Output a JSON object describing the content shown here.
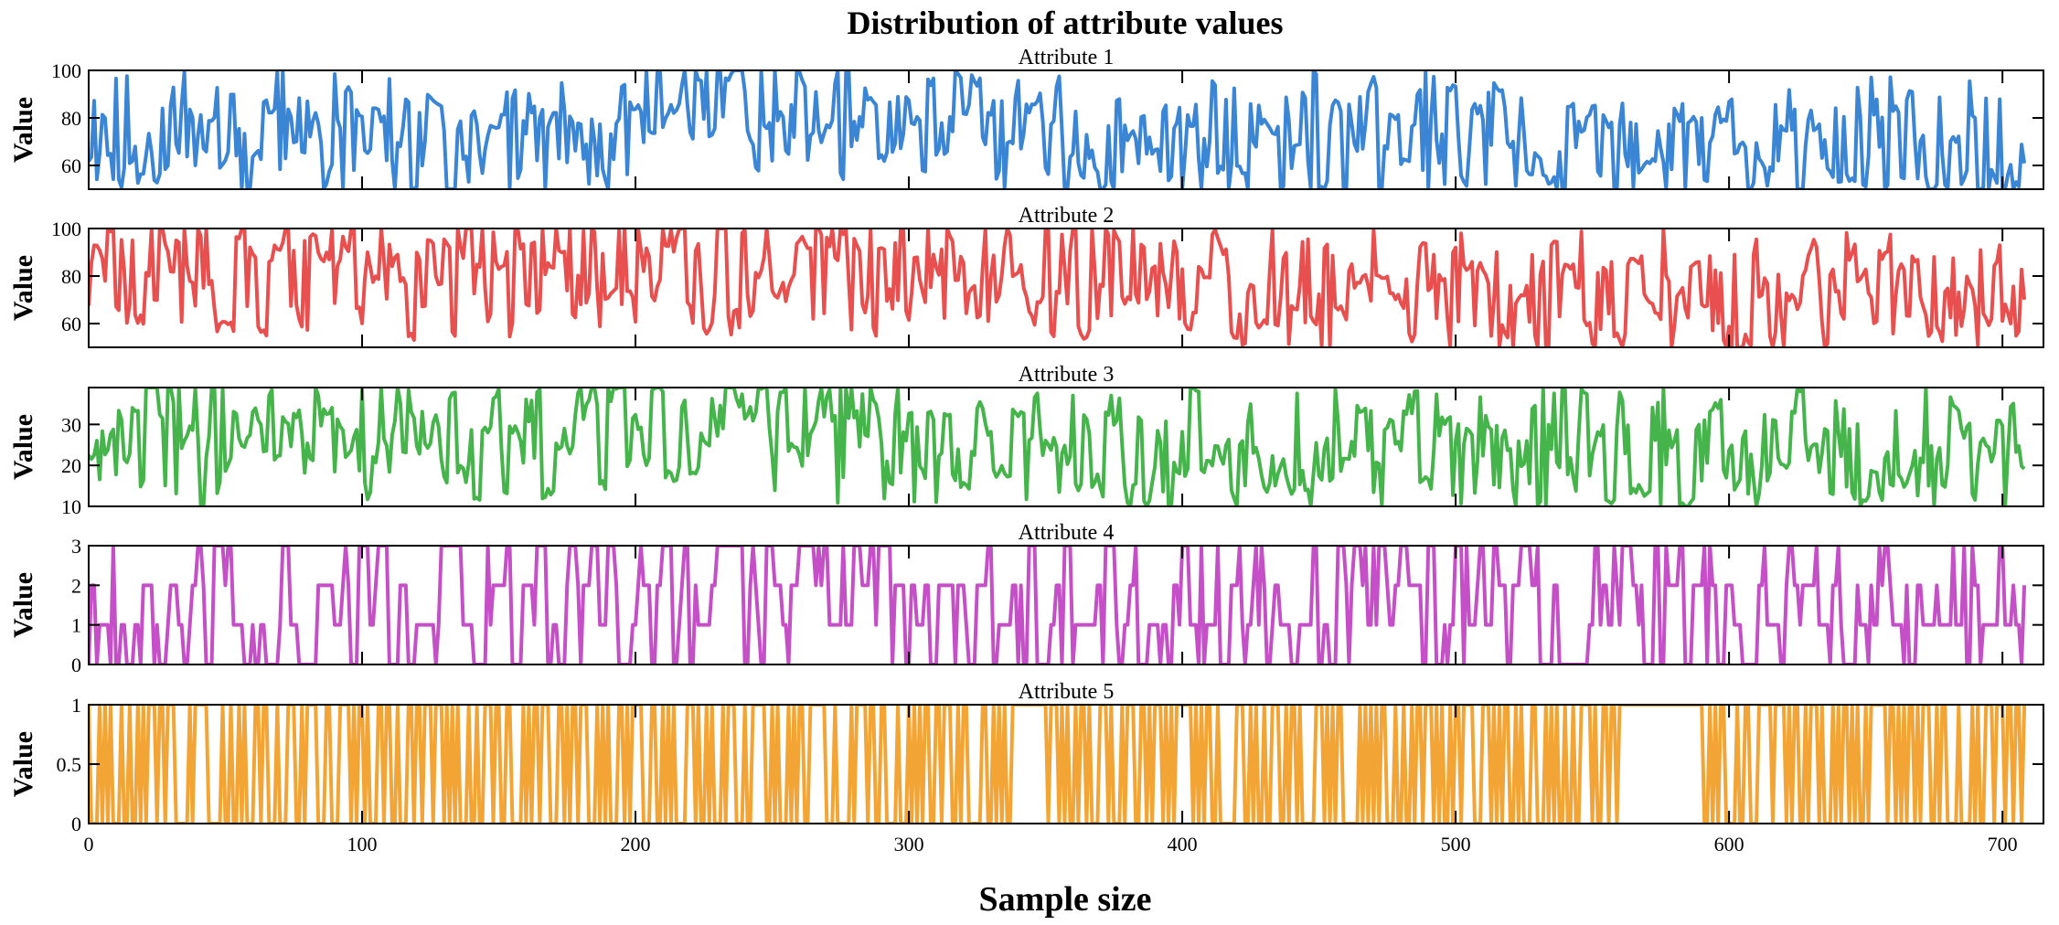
{
  "chart_data": {
    "type": "line",
    "title": "Distribution of attribute values",
    "xlabel": "Sample size",
    "ylabel": "Value",
    "xlim": [
      0,
      715
    ],
    "xticks": [
      0,
      100,
      200,
      300,
      400,
      500,
      600,
      700
    ],
    "n_samples": 709,
    "series": [
      {
        "name": "Attribute 1",
        "color": "#3a86d4",
        "ylim": [
          50,
          100
        ],
        "yticks": [
          60,
          80,
          100
        ],
        "min": 50,
        "max": 100,
        "kind": "continuous",
        "seed": 11,
        "segments": [
          [
            0,
            80,
            78
          ],
          [
            200,
            240,
            92
          ],
          [
            240,
            350,
            80
          ],
          [
            350,
            500,
            72
          ],
          [
            500,
            709,
            68
          ]
        ]
      },
      {
        "name": "Attribute 2",
        "color": "#e8504f",
        "ylim": [
          50,
          100
        ],
        "yticks": [
          60,
          80,
          100
        ],
        "min": 50,
        "max": 100,
        "kind": "continuous",
        "seed": 23,
        "segments": [
          [
            0,
            400,
            82
          ],
          [
            400,
            709,
            72
          ]
        ]
      },
      {
        "name": "Attribute 3",
        "color": "#45b54b",
        "ylim": [
          10,
          39
        ],
        "yticks": [
          10,
          20,
          30
        ],
        "min": 10,
        "max": 39,
        "kind": "continuous",
        "seed": 37,
        "segments": [
          [
            0,
            300,
            28
          ],
          [
            300,
            709,
            24
          ]
        ]
      },
      {
        "name": "Attribute 4",
        "color": "#c54fc6",
        "ylim": [
          0,
          3
        ],
        "yticks": [
          0,
          1,
          2,
          3
        ],
        "min": 0,
        "max": 3,
        "kind": "discrete",
        "levels": [
          0,
          1,
          2,
          3
        ],
        "seed": 53
      },
      {
        "name": "Attribute 5",
        "color": "#f2a535",
        "ylim": [
          0,
          1
        ],
        "yticks": [
          0,
          0.5,
          1
        ],
        "min": 0,
        "max": 1,
        "kind": "binary",
        "levels": [
          0,
          1
        ],
        "seed": 71
      }
    ]
  }
}
